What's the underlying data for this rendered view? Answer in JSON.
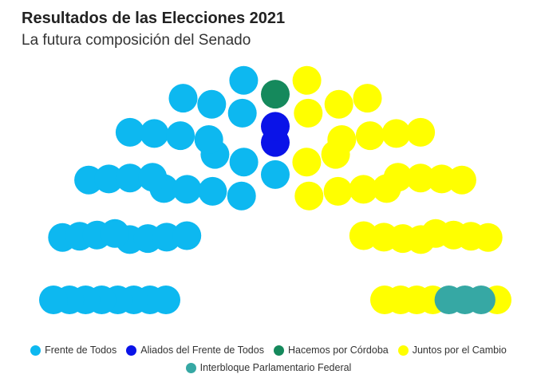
{
  "title": "Resultados de las Elecciones 2021",
  "subtitle": "La futura composición del Senado",
  "chart_data": {
    "type": "parliament",
    "total_seats": 72,
    "series": [
      {
        "name": "Frente de Todos",
        "value": 35,
        "color": "#0db8f0"
      },
      {
        "name": "Aliados del Frente de Todos",
        "value": 2,
        "color": "#0a13e8"
      },
      {
        "name": "Hacemos por Córdoba",
        "value": 1,
        "color": "#15895c"
      },
      {
        "name": "Juntos por el Cambio",
        "value": 31,
        "color": "#ffff00"
      },
      {
        "name": "Interbloque Parlamentario Federal",
        "value": 3,
        "color": "#36a8a4"
      }
    ],
    "legend_position": "bottom",
    "legend_rows": [
      [
        0,
        1,
        2,
        3
      ],
      [
        4
      ]
    ]
  }
}
